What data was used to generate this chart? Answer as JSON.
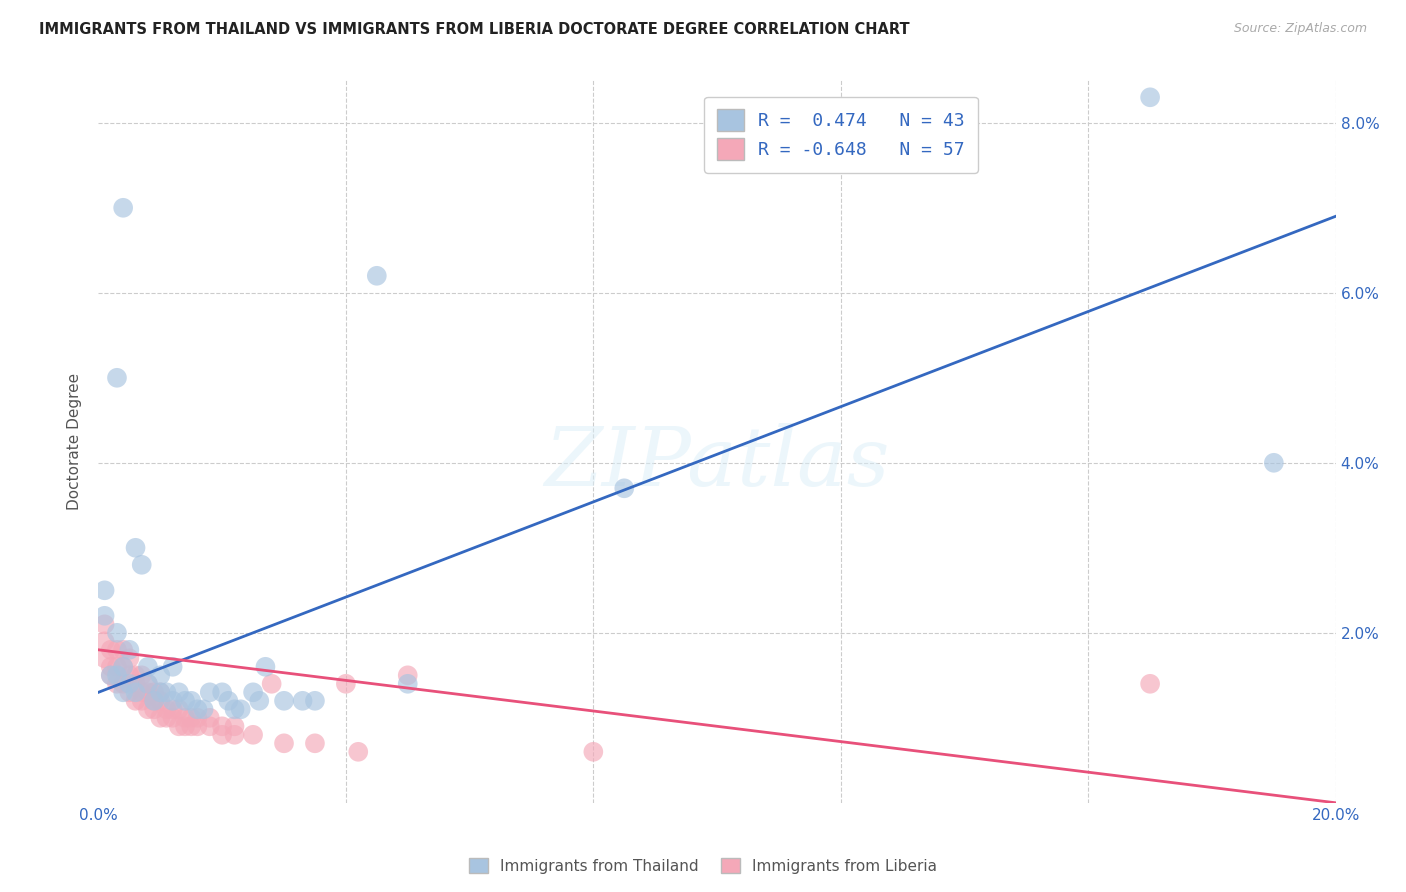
{
  "title": "IMMIGRANTS FROM THAILAND VS IMMIGRANTS FROM LIBERIA DOCTORATE DEGREE CORRELATION CHART",
  "source": "Source: ZipAtlas.com",
  "ylabel": "Doctorate Degree",
  "xlim": [
    0.0,
    0.2
  ],
  "ylim": [
    0.0,
    0.085
  ],
  "thailand_color": "#a8c4e0",
  "liberia_color": "#f4a8b8",
  "thailand_line_color": "#3468c0",
  "liberia_line_color": "#e8507a",
  "thailand_R": 0.474,
  "thailand_N": 43,
  "liberia_R": -0.648,
  "liberia_N": 57,
  "background_color": "#ffffff",
  "grid_color": "#cccccc",
  "watermark": "ZIPatlas",
  "legend_label_thailand": "Immigrants from Thailand",
  "legend_label_liberia": "Immigrants from Liberia",
  "thailand_points": [
    [
      0.001,
      0.022
    ],
    [
      0.001,
      0.025
    ],
    [
      0.002,
      0.015
    ],
    [
      0.003,
      0.02
    ],
    [
      0.003,
      0.015
    ],
    [
      0.004,
      0.013
    ],
    [
      0.004,
      0.016
    ],
    [
      0.005,
      0.014
    ],
    [
      0.005,
      0.018
    ],
    [
      0.006,
      0.013
    ],
    [
      0.006,
      0.03
    ],
    [
      0.007,
      0.028
    ],
    [
      0.008,
      0.014
    ],
    [
      0.008,
      0.016
    ],
    [
      0.009,
      0.012
    ],
    [
      0.01,
      0.015
    ],
    [
      0.01,
      0.013
    ],
    [
      0.011,
      0.013
    ],
    [
      0.012,
      0.012
    ],
    [
      0.012,
      0.016
    ],
    [
      0.013,
      0.013
    ],
    [
      0.014,
      0.012
    ],
    [
      0.015,
      0.012
    ],
    [
      0.016,
      0.011
    ],
    [
      0.017,
      0.011
    ],
    [
      0.018,
      0.013
    ],
    [
      0.02,
      0.013
    ],
    [
      0.021,
      0.012
    ],
    [
      0.022,
      0.011
    ],
    [
      0.023,
      0.011
    ],
    [
      0.025,
      0.013
    ],
    [
      0.026,
      0.012
    ],
    [
      0.027,
      0.016
    ],
    [
      0.03,
      0.012
    ],
    [
      0.033,
      0.012
    ],
    [
      0.035,
      0.012
    ],
    [
      0.045,
      0.062
    ],
    [
      0.05,
      0.014
    ],
    [
      0.085,
      0.037
    ],
    [
      0.17,
      0.083
    ],
    [
      0.19,
      0.04
    ],
    [
      0.003,
      0.05
    ],
    [
      0.004,
      0.07
    ]
  ],
  "liberia_points": [
    [
      0.001,
      0.019
    ],
    [
      0.001,
      0.021
    ],
    [
      0.001,
      0.017
    ],
    [
      0.002,
      0.015
    ],
    [
      0.002,
      0.018
    ],
    [
      0.002,
      0.016
    ],
    [
      0.003,
      0.014
    ],
    [
      0.003,
      0.016
    ],
    [
      0.003,
      0.018
    ],
    [
      0.004,
      0.014
    ],
    [
      0.004,
      0.016
    ],
    [
      0.004,
      0.018
    ],
    [
      0.005,
      0.013
    ],
    [
      0.005,
      0.015
    ],
    [
      0.005,
      0.017
    ],
    [
      0.006,
      0.012
    ],
    [
      0.006,
      0.014
    ],
    [
      0.006,
      0.015
    ],
    [
      0.007,
      0.012
    ],
    [
      0.007,
      0.013
    ],
    [
      0.007,
      0.015
    ],
    [
      0.008,
      0.011
    ],
    [
      0.008,
      0.013
    ],
    [
      0.008,
      0.014
    ],
    [
      0.009,
      0.011
    ],
    [
      0.009,
      0.012
    ],
    [
      0.009,
      0.013
    ],
    [
      0.01,
      0.01
    ],
    [
      0.01,
      0.012
    ],
    [
      0.01,
      0.013
    ],
    [
      0.011,
      0.01
    ],
    [
      0.011,
      0.011
    ],
    [
      0.012,
      0.01
    ],
    [
      0.012,
      0.011
    ],
    [
      0.013,
      0.009
    ],
    [
      0.013,
      0.011
    ],
    [
      0.014,
      0.009
    ],
    [
      0.014,
      0.01
    ],
    [
      0.015,
      0.009
    ],
    [
      0.015,
      0.01
    ],
    [
      0.016,
      0.009
    ],
    [
      0.016,
      0.01
    ],
    [
      0.018,
      0.009
    ],
    [
      0.018,
      0.01
    ],
    [
      0.02,
      0.008
    ],
    [
      0.02,
      0.009
    ],
    [
      0.022,
      0.008
    ],
    [
      0.022,
      0.009
    ],
    [
      0.025,
      0.008
    ],
    [
      0.028,
      0.014
    ],
    [
      0.03,
      0.007
    ],
    [
      0.035,
      0.007
    ],
    [
      0.04,
      0.014
    ],
    [
      0.042,
      0.006
    ],
    [
      0.05,
      0.015
    ],
    [
      0.08,
      0.006
    ],
    [
      0.17,
      0.014
    ]
  ],
  "thailand_line": [
    0.0,
    0.013,
    0.2,
    0.069
  ],
  "liberia_line": [
    0.0,
    0.018,
    0.2,
    0.0
  ]
}
